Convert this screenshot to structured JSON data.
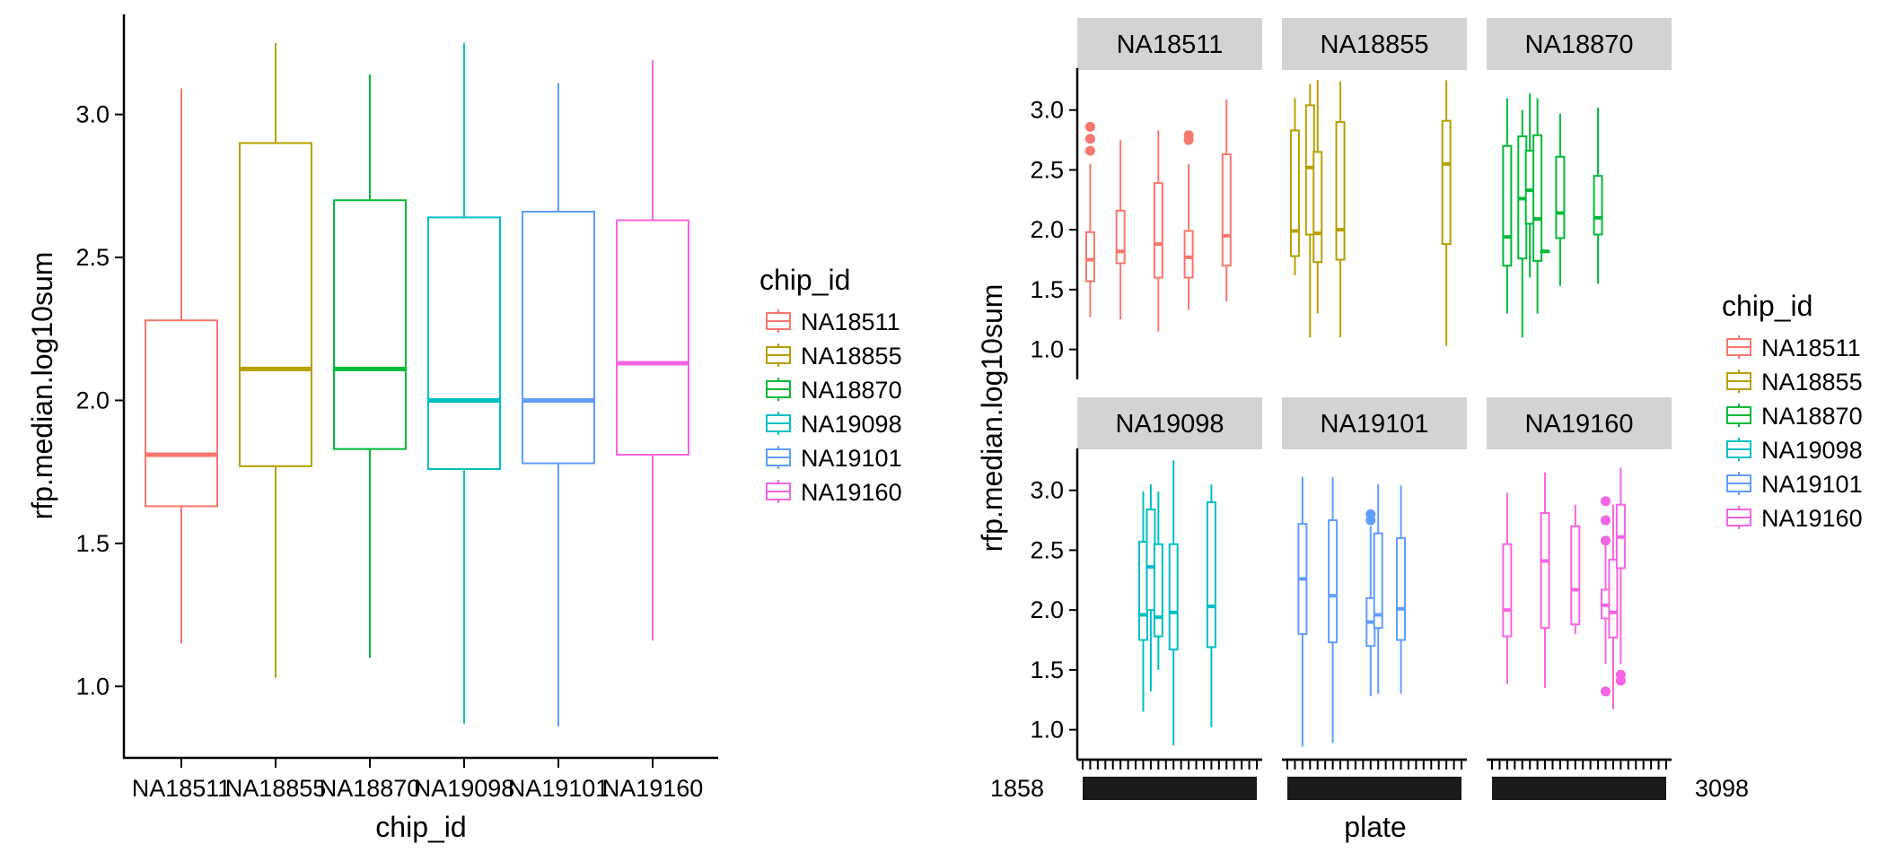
{
  "left_chart": {
    "xlabel": "chip_id",
    "ylabel": "rfp.median.log10sum",
    "ylim": [
      0.75,
      3.35
    ],
    "yticks": [
      "1.0",
      "1.5",
      "2.0",
      "2.5",
      "3.0"
    ],
    "legend": {
      "title": "chip_id",
      "items": [
        "NA18511",
        "NA18855",
        "NA18870",
        "NA19098",
        "NA19101",
        "NA19160"
      ]
    }
  },
  "right_chart": {
    "xlabel": "plate",
    "ylabel": "rfp.median.log10sum",
    "ylim": [
      0.75,
      3.35
    ],
    "yticks": [
      "1.0",
      "1.5",
      "2.0",
      "2.5",
      "3.0"
    ],
    "edge_tick_label_left": "1858",
    "edge_tick_label_right": "3098",
    "legend": {
      "title": "chip_id",
      "items": [
        "NA18511",
        "NA18855",
        "NA18870",
        "NA19098",
        "NA19101",
        "NA19160"
      ]
    },
    "facets": [
      {
        "label": "NA18511"
      },
      {
        "label": "NA18855"
      },
      {
        "label": "NA18870"
      },
      {
        "label": "NA19098"
      },
      {
        "label": "NA19101"
      },
      {
        "label": "NA19160"
      }
    ]
  },
  "colors": {
    "NA18511": "#F8766D",
    "NA18855": "#B79F00",
    "NA18870": "#00BA38",
    "NA19098": "#00BFC4",
    "NA19101": "#619CFF",
    "NA19160": "#F564E3",
    "strip": "#d3d3d3",
    "axis": "#000000"
  },
  "chart_data": [
    {
      "type": "box",
      "title": "",
      "xlabel": "chip_id",
      "ylabel": "rfp.median.log10sum",
      "ylim": [
        0.75,
        3.35
      ],
      "categories": [
        "NA18511",
        "NA18855",
        "NA18870",
        "NA19098",
        "NA19101",
        "NA19160"
      ],
      "boxes": [
        {
          "name": "NA18511",
          "min": 1.15,
          "q1": 1.63,
          "median": 1.81,
          "q3": 2.28,
          "max": 3.09
        },
        {
          "name": "NA18855",
          "min": 1.03,
          "q1": 1.77,
          "median": 2.11,
          "q3": 2.9,
          "max": 3.25
        },
        {
          "name": "NA18870",
          "min": 1.1,
          "q1": 1.83,
          "median": 2.11,
          "q3": 2.7,
          "max": 3.14
        },
        {
          "name": "NA19098",
          "min": 0.87,
          "q1": 1.76,
          "median": 2.0,
          "q3": 2.64,
          "max": 3.25
        },
        {
          "name": "NA19101",
          "min": 0.86,
          "q1": 1.78,
          "median": 2.0,
          "q3": 2.66,
          "max": 3.11
        },
        {
          "name": "NA19160",
          "min": 1.16,
          "q1": 1.81,
          "median": 2.13,
          "q3": 2.63,
          "max": 3.19
        }
      ]
    },
    {
      "type": "box",
      "title": "",
      "xlabel": "plate",
      "ylabel": "rfp.median.log10sum",
      "ylim": [
        0.75,
        3.35
      ],
      "facet_by": "chip_id",
      "plate_range": [
        1,
        24
      ],
      "panels": [
        {
          "facet": "NA18511",
          "boxes": [
            {
              "plate": 2,
              "min": 1.27,
              "q1": 1.57,
              "median": 1.75,
              "q3": 1.98,
              "max": 2.55,
              "outliers": [
                2.66,
                2.76,
                2.86
              ]
            },
            {
              "plate": 6,
              "min": 1.25,
              "q1": 1.72,
              "median": 1.82,
              "q3": 2.16,
              "max": 2.75,
              "outliers": []
            },
            {
              "plate": 11,
              "min": 1.15,
              "q1": 1.6,
              "median": 1.88,
              "q3": 2.39,
              "max": 2.83,
              "outliers": []
            },
            {
              "plate": 15,
              "min": 1.33,
              "q1": 1.6,
              "median": 1.77,
              "q3": 1.99,
              "max": 2.55,
              "outliers": [
                2.75,
                2.79
              ]
            },
            {
              "plate": 20,
              "min": 1.4,
              "q1": 1.7,
              "median": 1.95,
              "q3": 2.63,
              "max": 3.09,
              "outliers": []
            }
          ]
        },
        {
          "facet": "NA18855",
          "boxes": [
            {
              "plate": 2,
              "min": 1.62,
              "q1": 1.78,
              "median": 1.99,
              "q3": 2.83,
              "max": 3.1,
              "outliers": []
            },
            {
              "plate": 4,
              "min": 1.1,
              "q1": 1.96,
              "median": 2.52,
              "q3": 3.04,
              "max": 3.22,
              "outliers": []
            },
            {
              "plate": 5,
              "min": 1.3,
              "q1": 1.73,
              "median": 1.97,
              "q3": 2.65,
              "max": 3.25,
              "outliers": []
            },
            {
              "plate": 8,
              "min": 1.1,
              "q1": 1.75,
              "median": 2.0,
              "q3": 2.9,
              "max": 3.24,
              "outliers": []
            },
            {
              "plate": 22,
              "min": 1.03,
              "q1": 1.88,
              "median": 2.55,
              "q3": 2.91,
              "max": 3.25,
              "outliers": []
            }
          ]
        },
        {
          "facet": "NA18870",
          "boxes": [
            {
              "plate": 3,
              "min": 1.3,
              "q1": 1.7,
              "median": 1.94,
              "q3": 2.7,
              "max": 3.1,
              "outliers": []
            },
            {
              "plate": 5,
              "min": 1.1,
              "q1": 1.76,
              "median": 2.26,
              "q3": 2.78,
              "max": 3.0,
              "outliers": []
            },
            {
              "plate": 6,
              "min": 1.6,
              "q1": 2.05,
              "median": 2.33,
              "q3": 2.66,
              "max": 3.14,
              "outliers": []
            },
            {
              "plate": 7,
              "min": 1.3,
              "q1": 1.74,
              "median": 2.09,
              "q3": 2.79,
              "max": 3.1,
              "outliers": []
            },
            {
              "plate": 8,
              "min": 1.82,
              "q1": 1.82,
              "median": 1.82,
              "q3": 1.82,
              "max": 1.82,
              "outliers": []
            },
            {
              "plate": 10,
              "min": 1.53,
              "q1": 1.93,
              "median": 2.14,
              "q3": 2.61,
              "max": 2.97,
              "outliers": []
            },
            {
              "plate": 15,
              "min": 1.55,
              "q1": 1.96,
              "median": 2.1,
              "q3": 2.45,
              "max": 3.02,
              "outliers": []
            }
          ]
        },
        {
          "facet": "NA19098",
          "boxes": [
            {
              "plate": 9,
              "min": 1.15,
              "q1": 1.75,
              "median": 1.96,
              "q3": 2.57,
              "max": 2.99,
              "outliers": []
            },
            {
              "plate": 10,
              "min": 1.32,
              "q1": 2.0,
              "median": 2.36,
              "q3": 2.84,
              "max": 3.05,
              "outliers": []
            },
            {
              "plate": 11,
              "min": 1.5,
              "q1": 1.78,
              "median": 1.94,
              "q3": 2.55,
              "max": 2.99,
              "outliers": []
            },
            {
              "plate": 13,
              "min": 0.87,
              "q1": 1.67,
              "median": 1.98,
              "q3": 2.55,
              "max": 3.25,
              "outliers": []
            },
            {
              "plate": 18,
              "min": 1.02,
              "q1": 1.69,
              "median": 2.03,
              "q3": 2.9,
              "max": 3.05,
              "outliers": []
            }
          ]
        },
        {
          "facet": "NA19101",
          "boxes": [
            {
              "plate": 3,
              "min": 0.86,
              "q1": 1.8,
              "median": 2.26,
              "q3": 2.72,
              "max": 3.11,
              "outliers": []
            },
            {
              "plate": 7,
              "min": 0.89,
              "q1": 1.73,
              "median": 2.12,
              "q3": 2.75,
              "max": 3.11,
              "outliers": []
            },
            {
              "plate": 12,
              "min": 1.28,
              "q1": 1.7,
              "median": 1.9,
              "q3": 2.1,
              "max": 2.7,
              "outliers": [
                2.75,
                2.8
              ]
            },
            {
              "plate": 13,
              "min": 1.3,
              "q1": 1.85,
              "median": 1.96,
              "q3": 2.64,
              "max": 3.05,
              "outliers": []
            },
            {
              "plate": 16,
              "min": 1.3,
              "q1": 1.75,
              "median": 2.01,
              "q3": 2.6,
              "max": 3.04,
              "outliers": []
            }
          ]
        },
        {
          "facet": "NA19160",
          "boxes": [
            {
              "plate": 3,
              "min": 1.38,
              "q1": 1.78,
              "median": 2.0,
              "q3": 2.55,
              "max": 2.98,
              "outliers": []
            },
            {
              "plate": 8,
              "min": 1.35,
              "q1": 1.85,
              "median": 2.41,
              "q3": 2.81,
              "max": 3.15,
              "outliers": []
            },
            {
              "plate": 12,
              "min": 1.8,
              "q1": 1.88,
              "median": 2.17,
              "q3": 2.7,
              "max": 2.88,
              "outliers": []
            },
            {
              "plate": 16,
              "min": 1.55,
              "q1": 1.93,
              "median": 2.04,
              "q3": 2.17,
              "max": 2.55,
              "outliers": [
                1.32,
                2.58,
                2.75,
                2.91
              ]
            },
            {
              "plate": 17,
              "min": 1.17,
              "q1": 1.77,
              "median": 1.98,
              "q3": 2.42,
              "max": 2.88,
              "outliers": []
            },
            {
              "plate": 18,
              "min": 1.55,
              "q1": 2.35,
              "median": 2.61,
              "q3": 2.88,
              "max": 3.19,
              "outliers": [
                1.41,
                1.46
              ]
            }
          ]
        }
      ]
    }
  ]
}
